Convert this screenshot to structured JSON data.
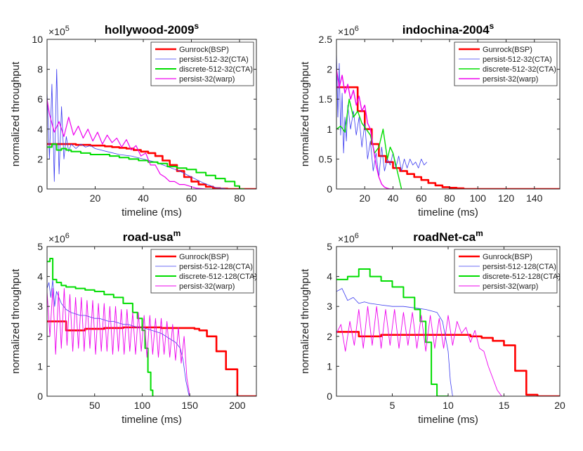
{
  "chart_data": [
    {
      "type": "line",
      "title": "hollywood-2009",
      "title_superscript": "s",
      "xlabel": "timeline (ms)",
      "ylabel": "normalized throughput",
      "y_multiplier_base": "×10",
      "y_multiplier_exp": "5",
      "xlim": [
        0,
        87
      ],
      "ylim": [
        0,
        10
      ],
      "xticks": [
        20,
        40,
        60,
        80
      ],
      "yticks": [
        0,
        2,
        4,
        6,
        8,
        10
      ],
      "legend": "top-right",
      "series": [
        {
          "name": "Gunrock(BSP)",
          "color": "#ff0000",
          "width": 2.6,
          "style": "step",
          "x": [
            0,
            3,
            6,
            9,
            12,
            15,
            18,
            21,
            24,
            27,
            30,
            33,
            36,
            39,
            42,
            45,
            48,
            51,
            54,
            57,
            60,
            63,
            66,
            69,
            72,
            75,
            78,
            80,
            82,
            87
          ],
          "y": [
            3.0,
            3.0,
            3.0,
            3.0,
            2.95,
            2.95,
            2.9,
            2.9,
            2.85,
            2.8,
            2.75,
            2.7,
            2.6,
            2.5,
            2.4,
            2.2,
            1.9,
            1.6,
            1.2,
            0.8,
            0.5,
            0.3,
            0.15,
            0.05,
            0.02,
            0,
            0,
            0,
            0,
            0
          ]
        },
        {
          "name": "persist-512-32(CTA)",
          "color": "#3b3bf0",
          "width": 0.8,
          "style": "line",
          "x": [
            0,
            1,
            2,
            3,
            4,
            5,
            6,
            7,
            8,
            9,
            10,
            12,
            14,
            16,
            18,
            20,
            25,
            30,
            35,
            40,
            45,
            50,
            55,
            60,
            65,
            70,
            75
          ],
          "y": [
            6.5,
            2.0,
            7.0,
            0.5,
            8.0,
            1.0,
            5.5,
            2.0,
            3.5,
            2.5,
            3.0,
            2.7,
            3.0,
            2.8,
            2.9,
            2.7,
            2.5,
            2.3,
            2.2,
            2.0,
            1.8,
            1.5,
            1.2,
            0.8,
            0.4,
            0.1,
            0
          ]
        },
        {
          "name": "discrete-512-32(CTA)",
          "color": "#00dd00",
          "width": 2.0,
          "style": "step",
          "x": [
            0,
            2,
            4,
            6,
            8,
            10,
            14,
            18,
            22,
            26,
            30,
            34,
            38,
            42,
            46,
            50,
            54,
            58,
            62,
            66,
            70,
            74,
            78,
            80,
            82
          ],
          "y": [
            2.8,
            3.0,
            2.6,
            2.7,
            2.6,
            2.5,
            2.4,
            2.3,
            2.3,
            2.2,
            2.1,
            2.0,
            1.9,
            1.8,
            1.7,
            1.5,
            1.4,
            1.3,
            1.1,
            0.9,
            0.7,
            0.5,
            0.2,
            0,
            0
          ]
        },
        {
          "name": "persist-32(warp)",
          "color": "#ee00ee",
          "width": 1.2,
          "style": "line",
          "x": [
            0,
            1,
            3,
            5,
            7,
            9,
            11,
            13,
            15,
            17,
            19,
            21,
            23,
            25,
            27,
            29,
            31,
            33,
            35,
            37,
            39,
            41,
            43,
            45,
            47,
            49,
            51,
            53,
            55,
            57,
            59,
            62,
            66
          ],
          "y": [
            6.0,
            5.0,
            3.8,
            4.5,
            3.5,
            4.8,
            3.6,
            4.2,
            3.4,
            4.0,
            3.2,
            3.8,
            3.0,
            3.6,
            3.1,
            3.4,
            2.8,
            3.3,
            2.6,
            2.9,
            2.2,
            2.4,
            1.6,
            1.6,
            1.0,
            0.8,
            0.5,
            0.5,
            0.3,
            0.3,
            0.2,
            0.05,
            0
          ]
        }
      ]
    },
    {
      "type": "line",
      "title": "indochina-2004",
      "title_superscript": "s",
      "xlabel": "timeline (ms)",
      "ylabel": "normalized throughput",
      "y_multiplier_base": "×10",
      "y_multiplier_exp": "6",
      "xlim": [
        0,
        158
      ],
      "ylim": [
        0,
        2.5
      ],
      "xticks": [
        20,
        40,
        60,
        80,
        100,
        120,
        140
      ],
      "yticks": [
        0,
        0.5,
        1,
        1.5,
        2,
        2.5
      ],
      "legend": "top-right",
      "series": [
        {
          "name": "Gunrock(BSP)",
          "color": "#ff0000",
          "width": 2.6,
          "style": "step",
          "x": [
            0,
            5,
            10,
            15,
            20,
            25,
            30,
            35,
            40,
            45,
            50,
            55,
            60,
            65,
            70,
            75,
            80,
            85,
            90,
            95,
            100,
            158
          ],
          "y": [
            1.7,
            1.7,
            1.7,
            1.3,
            1.0,
            0.75,
            0.55,
            0.45,
            0.35,
            0.3,
            0.25,
            0.2,
            0.15,
            0.1,
            0.06,
            0.03,
            0.02,
            0.01,
            0,
            0,
            0,
            0
          ]
        },
        {
          "name": "persist-512-32(CTA)",
          "color": "#3b3bf0",
          "width": 0.8,
          "style": "line",
          "x": [
            0,
            1,
            2,
            3,
            4,
            5,
            6,
            7,
            8,
            10,
            12,
            14,
            16,
            18,
            20,
            22,
            24,
            26,
            28,
            30,
            32,
            34,
            36,
            38,
            40,
            42,
            44,
            46,
            48,
            50,
            52,
            54,
            56,
            58,
            60,
            62,
            64
          ],
          "y": [
            2.3,
            1.2,
            2.1,
            0.9,
            1.6,
            0.6,
            1.2,
            0.8,
            1.4,
            1.0,
            1.3,
            0.9,
            1.2,
            0.7,
            1.1,
            0.5,
            0.8,
            0.3,
            0.6,
            0.2,
            0.7,
            0.3,
            0.5,
            0.4,
            0.6,
            0.35,
            0.55,
            0.3,
            0.5,
            0.35,
            0.5,
            0.4,
            0.45,
            0.35,
            0.5,
            0.4,
            0.45
          ]
        },
        {
          "name": "discrete-512-32(CTA)",
          "color": "#00dd00",
          "width": 1.4,
          "style": "line",
          "x": [
            0,
            3,
            6,
            9,
            12,
            15,
            18,
            21,
            24,
            27,
            30,
            33,
            36,
            38,
            40,
            42,
            44,
            46
          ],
          "y": [
            1.0,
            1.05,
            0.95,
            1.5,
            1.2,
            1.3,
            1.1,
            1.0,
            0.9,
            0.6,
            0.7,
            1.0,
            0.5,
            0.7,
            0.6,
            0.4,
            0.2,
            0
          ]
        },
        {
          "name": "persist-32(warp)",
          "color": "#ee00ee",
          "width": 1.4,
          "style": "line",
          "x": [
            0,
            2,
            4,
            6,
            8,
            10,
            12,
            14,
            16,
            18,
            20,
            22,
            24,
            26,
            28,
            30,
            32,
            34,
            36,
            38,
            40
          ],
          "y": [
            2.0,
            1.7,
            1.9,
            1.6,
            1.75,
            1.5,
            1.65,
            1.4,
            1.55,
            1.3,
            1.4,
            1.1,
            1.0,
            0.7,
            0.4,
            0.2,
            0.08,
            0.03,
            0.01,
            0,
            0
          ]
        }
      ]
    },
    {
      "type": "line",
      "title": "road-usa",
      "title_superscript": "m",
      "xlabel": "timeline (ms)",
      "ylabel": "normalized throughput",
      "y_multiplier_base": "×10",
      "y_multiplier_exp": "6",
      "xlim": [
        0,
        220
      ],
      "ylim": [
        0,
        5
      ],
      "xticks": [
        50,
        100,
        150,
        200
      ],
      "yticks": [
        0,
        1,
        2,
        3,
        4,
        5
      ],
      "legend": "top-right",
      "series": [
        {
          "name": "Gunrock(BSP)",
          "color": "#ff0000",
          "width": 2.6,
          "style": "step",
          "x": [
            0,
            10,
            20,
            30,
            40,
            60,
            80,
            100,
            120,
            140,
            155,
            160,
            168,
            178,
            188,
            200,
            220
          ],
          "y": [
            2.5,
            2.5,
            2.2,
            2.2,
            2.25,
            2.28,
            2.3,
            2.3,
            2.28,
            2.28,
            2.25,
            2.2,
            2.0,
            1.5,
            0.9,
            0,
            0
          ]
        },
        {
          "name": "persist-512-128(CTA)",
          "color": "#3b3bf0",
          "width": 0.8,
          "style": "line",
          "x": [
            0,
            2,
            4,
            6,
            8,
            10,
            15,
            20,
            25,
            30,
            35,
            40,
            45,
            50,
            55,
            60,
            65,
            70,
            75,
            80,
            85,
            90,
            95,
            100,
            105,
            110,
            115,
            120,
            125,
            130,
            135,
            140,
            143,
            146,
            149,
            150
          ],
          "y": [
            3.6,
            3.8,
            3.3,
            3.9,
            3.0,
            3.5,
            3.1,
            2.9,
            2.8,
            2.75,
            2.7,
            2.7,
            2.65,
            2.6,
            2.6,
            2.55,
            2.5,
            2.5,
            2.45,
            2.4,
            2.4,
            2.35,
            2.3,
            2.3,
            2.25,
            2.2,
            2.15,
            2.1,
            2.0,
            1.9,
            1.8,
            1.6,
            1.2,
            0.5,
            0.05,
            0
          ]
        },
        {
          "name": "discrete-512-128(CTA)",
          "color": "#00dd00",
          "width": 2.0,
          "style": "step",
          "x": [
            0,
            3,
            6,
            10,
            15,
            20,
            30,
            40,
            50,
            60,
            70,
            80,
            90,
            95,
            100,
            103,
            106,
            109,
            111,
            112
          ],
          "y": [
            4.5,
            4.6,
            3.9,
            3.8,
            3.7,
            3.65,
            3.6,
            3.55,
            3.5,
            3.4,
            3.3,
            3.1,
            2.8,
            2.6,
            2.2,
            1.6,
            0.8,
            0.2,
            0,
            0
          ]
        },
        {
          "name": "persist-32(warp)",
          "color": "#ee00ee",
          "width": 0.9,
          "style": "zigzag",
          "x": [
            0,
            3,
            6,
            9,
            12,
            15,
            18,
            21,
            24,
            27,
            30,
            33,
            36,
            39,
            42,
            45,
            48,
            51,
            54,
            57,
            60,
            63,
            66,
            69,
            72,
            75,
            78,
            81,
            84,
            87,
            90,
            93,
            96,
            99,
            102,
            105,
            108,
            111,
            114,
            117,
            120,
            123,
            126,
            129,
            132,
            135,
            138,
            141,
            144,
            147,
            150
          ],
          "y": [
            3.5,
            2.0,
            3.6,
            1.4,
            3.5,
            1.6,
            3.6,
            1.7,
            3.4,
            1.5,
            3.3,
            1.6,
            3.3,
            1.5,
            3.2,
            1.6,
            3.2,
            1.4,
            3.1,
            1.5,
            3.1,
            1.5,
            3.0,
            1.4,
            3.0,
            1.5,
            2.9,
            1.4,
            2.9,
            1.5,
            2.8,
            1.4,
            2.8,
            1.5,
            2.7,
            1.3,
            2.7,
            1.4,
            2.6,
            1.3,
            2.6,
            1.4,
            2.5,
            1.3,
            2.4,
            1.2,
            2.3,
            1.1,
            2.0,
            0.6,
            0
          ]
        }
      ]
    },
    {
      "type": "line",
      "title": "roadNet-ca",
      "title_superscript": "m",
      "xlabel": "timeline (ms)",
      "ylabel": "normalized throughput",
      "y_multiplier_base": "×10",
      "y_multiplier_exp": "6",
      "xlim": [
        0,
        20
      ],
      "ylim": [
        0,
        5
      ],
      "xticks": [
        5,
        10,
        15,
        20
      ],
      "yticks": [
        0,
        1,
        2,
        3,
        4,
        5
      ],
      "legend": "top-right",
      "series": [
        {
          "name": "Gunrock(BSP)",
          "color": "#ff0000",
          "width": 2.6,
          "style": "step",
          "x": [
            0,
            1,
            2,
            3,
            4,
            5,
            6,
            7,
            8,
            9,
            10,
            11,
            12,
            13,
            14,
            15,
            16,
            17,
            18,
            19,
            20
          ],
          "y": [
            2.15,
            2.15,
            2.0,
            2.0,
            2.05,
            2.05,
            2.05,
            2.05,
            2.05,
            2.05,
            2.05,
            2.05,
            2.0,
            1.95,
            1.85,
            1.7,
            0.85,
            0.05,
            0,
            0,
            0
          ]
        },
        {
          "name": "persist-512-128(CTA)",
          "color": "#3b3bf0",
          "width": 0.8,
          "style": "line",
          "x": [
            0,
            0.5,
            1,
            1.5,
            2,
            2.5,
            3,
            4,
            5,
            6,
            7,
            8,
            9,
            9.5,
            10,
            10.2,
            10.4
          ],
          "y": [
            3.5,
            3.6,
            3.2,
            3.3,
            3.1,
            3.15,
            3.1,
            3.05,
            3.0,
            3.0,
            2.95,
            2.9,
            2.8,
            2.5,
            1.5,
            0.5,
            0
          ]
        },
        {
          "name": "discrete-512-128(CTA)",
          "color": "#00dd00",
          "width": 2.0,
          "style": "step",
          "x": [
            0,
            1,
            2,
            3,
            4,
            5,
            6,
            7,
            7.5,
            8,
            8.5,
            9,
            9.5,
            10
          ],
          "y": [
            3.9,
            4.0,
            4.25,
            4.0,
            3.85,
            3.65,
            3.3,
            2.9,
            2.5,
            1.8,
            0.4,
            0,
            0,
            0
          ]
        },
        {
          "name": "persist-32(warp)",
          "color": "#ee00ee",
          "width": 0.9,
          "style": "zigzag",
          "x": [
            0,
            0.4,
            0.8,
            1.2,
            1.6,
            2.0,
            2.4,
            2.8,
            3.2,
            3.6,
            4.0,
            4.4,
            4.8,
            5.2,
            5.6,
            6.0,
            6.4,
            6.8,
            7.2,
            7.6,
            8.0,
            8.4,
            8.8,
            9.2,
            9.6,
            10.0,
            10.4,
            10.8,
            11.2,
            11.6,
            12.0,
            12.4,
            12.8,
            13.2,
            13.6,
            14.0,
            14.4,
            14.8
          ],
          "y": [
            2.1,
            2.4,
            1.5,
            2.5,
            1.7,
            2.9,
            1.6,
            3.0,
            1.7,
            3.0,
            1.6,
            2.9,
            1.7,
            2.9,
            1.6,
            2.8,
            1.7,
            2.8,
            1.6,
            2.7,
            1.5,
            2.7,
            1.6,
            2.6,
            1.6,
            2.7,
            1.7,
            2.5,
            2.1,
            2.3,
            1.8,
            2.2,
            1.6,
            1.5,
            1.0,
            0.6,
            0.2,
            0
          ]
        }
      ]
    }
  ]
}
